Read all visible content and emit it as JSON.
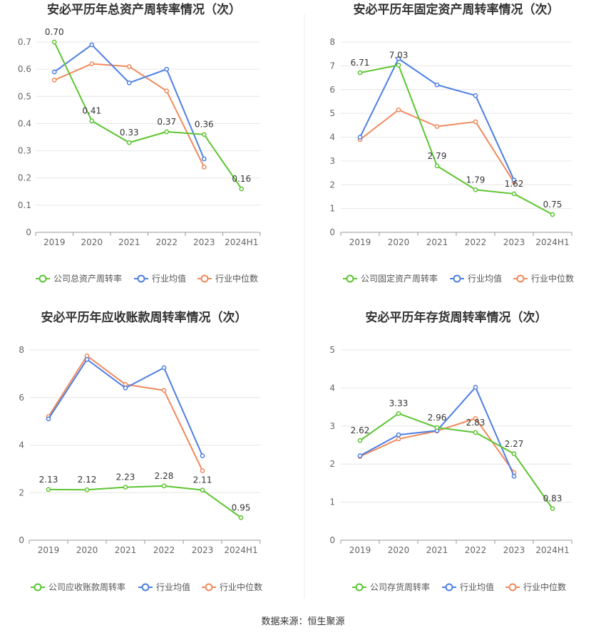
{
  "source_label": "数据来源：恒生聚源",
  "colors": {
    "company": "#5cc531",
    "avg": "#4e7fe3",
    "median": "#f08a5d"
  },
  "chart_data": [
    {
      "type": "line",
      "title": "安必平历年总资产周转率情况（次）",
      "categories": [
        "2019",
        "2020",
        "2021",
        "2022",
        "2023",
        "2024H1"
      ],
      "ylim": [
        0,
        0.7
      ],
      "yticks": [
        "0",
        "0.1",
        "0.2",
        "0.3",
        "0.4",
        "0.5",
        "0.6",
        "0.7"
      ],
      "series": [
        {
          "name": "公司总资产周转率",
          "values": [
            0.7,
            0.41,
            0.33,
            0.37,
            0.36,
            0.16
          ],
          "labels": [
            "0.70",
            "0.41",
            "0.33",
            "0.37",
            "0.36",
            "0.16"
          ]
        },
        {
          "name": "行业均值",
          "values": [
            0.59,
            0.69,
            0.55,
            0.6,
            0.27,
            null
          ]
        },
        {
          "name": "行业中位数",
          "values": [
            0.56,
            0.62,
            0.61,
            0.52,
            0.24,
            null
          ]
        }
      ]
    },
    {
      "type": "line",
      "title": "安必平历年固定资产周转率情况（次）",
      "categories": [
        "2019",
        "2020",
        "2021",
        "2022",
        "2023",
        "2024H1"
      ],
      "ylim": [
        0,
        8
      ],
      "yticks": [
        "0",
        "1",
        "2",
        "3",
        "4",
        "5",
        "6",
        "7",
        "8"
      ],
      "series": [
        {
          "name": "公司固定资产周转率",
          "values": [
            6.71,
            7.03,
            2.79,
            1.79,
            1.62,
            0.75
          ],
          "labels": [
            "6.71",
            "7.03",
            "2.79",
            "1.79",
            "1.62",
            "0.75"
          ]
        },
        {
          "name": "行业均值",
          "values": [
            4.0,
            7.3,
            6.2,
            5.75,
            2.2,
            null
          ]
        },
        {
          "name": "行业中位数",
          "values": [
            3.9,
            5.15,
            4.45,
            4.65,
            2.1,
            null
          ]
        }
      ]
    },
    {
      "type": "line",
      "title": "安必平历年应收账款周转率情况（次）",
      "categories": [
        "2019",
        "2020",
        "2021",
        "2022",
        "2023",
        "2024H1"
      ],
      "ylim": [
        0,
        8
      ],
      "yticks": [
        "0",
        "2",
        "4",
        "6",
        "8"
      ],
      "series": [
        {
          "name": "公司应收账款周转率",
          "values": [
            2.13,
            2.12,
            2.23,
            2.28,
            2.11,
            0.95
          ],
          "labels": [
            "2.13",
            "2.12",
            "2.23",
            "2.28",
            "2.11",
            "0.95"
          ]
        },
        {
          "name": "行业均值",
          "values": [
            5.1,
            7.6,
            6.4,
            7.25,
            3.55,
            null
          ]
        },
        {
          "name": "行业中位数",
          "values": [
            5.2,
            7.75,
            6.55,
            6.3,
            2.92,
            null
          ]
        }
      ]
    },
    {
      "type": "line",
      "title": "安必平历年存货周转率情况（次）",
      "categories": [
        "2019",
        "2020",
        "2021",
        "2022",
        "2023",
        "2024H1"
      ],
      "ylim": [
        0,
        5
      ],
      "yticks": [
        "0",
        "1",
        "2",
        "3",
        "4",
        "5"
      ],
      "series": [
        {
          "name": "公司存货周转率",
          "values": [
            2.62,
            3.33,
            2.96,
            2.83,
            2.27,
            0.83
          ],
          "labels": [
            "2.62",
            "3.33",
            "2.96",
            "2.83",
            "2.27",
            "0.83"
          ]
        },
        {
          "name": "行业均值",
          "values": [
            2.22,
            2.77,
            2.88,
            4.02,
            1.68,
            null
          ]
        },
        {
          "name": "行业中位数",
          "values": [
            2.2,
            2.66,
            2.87,
            3.2,
            1.78,
            null
          ]
        }
      ]
    }
  ]
}
